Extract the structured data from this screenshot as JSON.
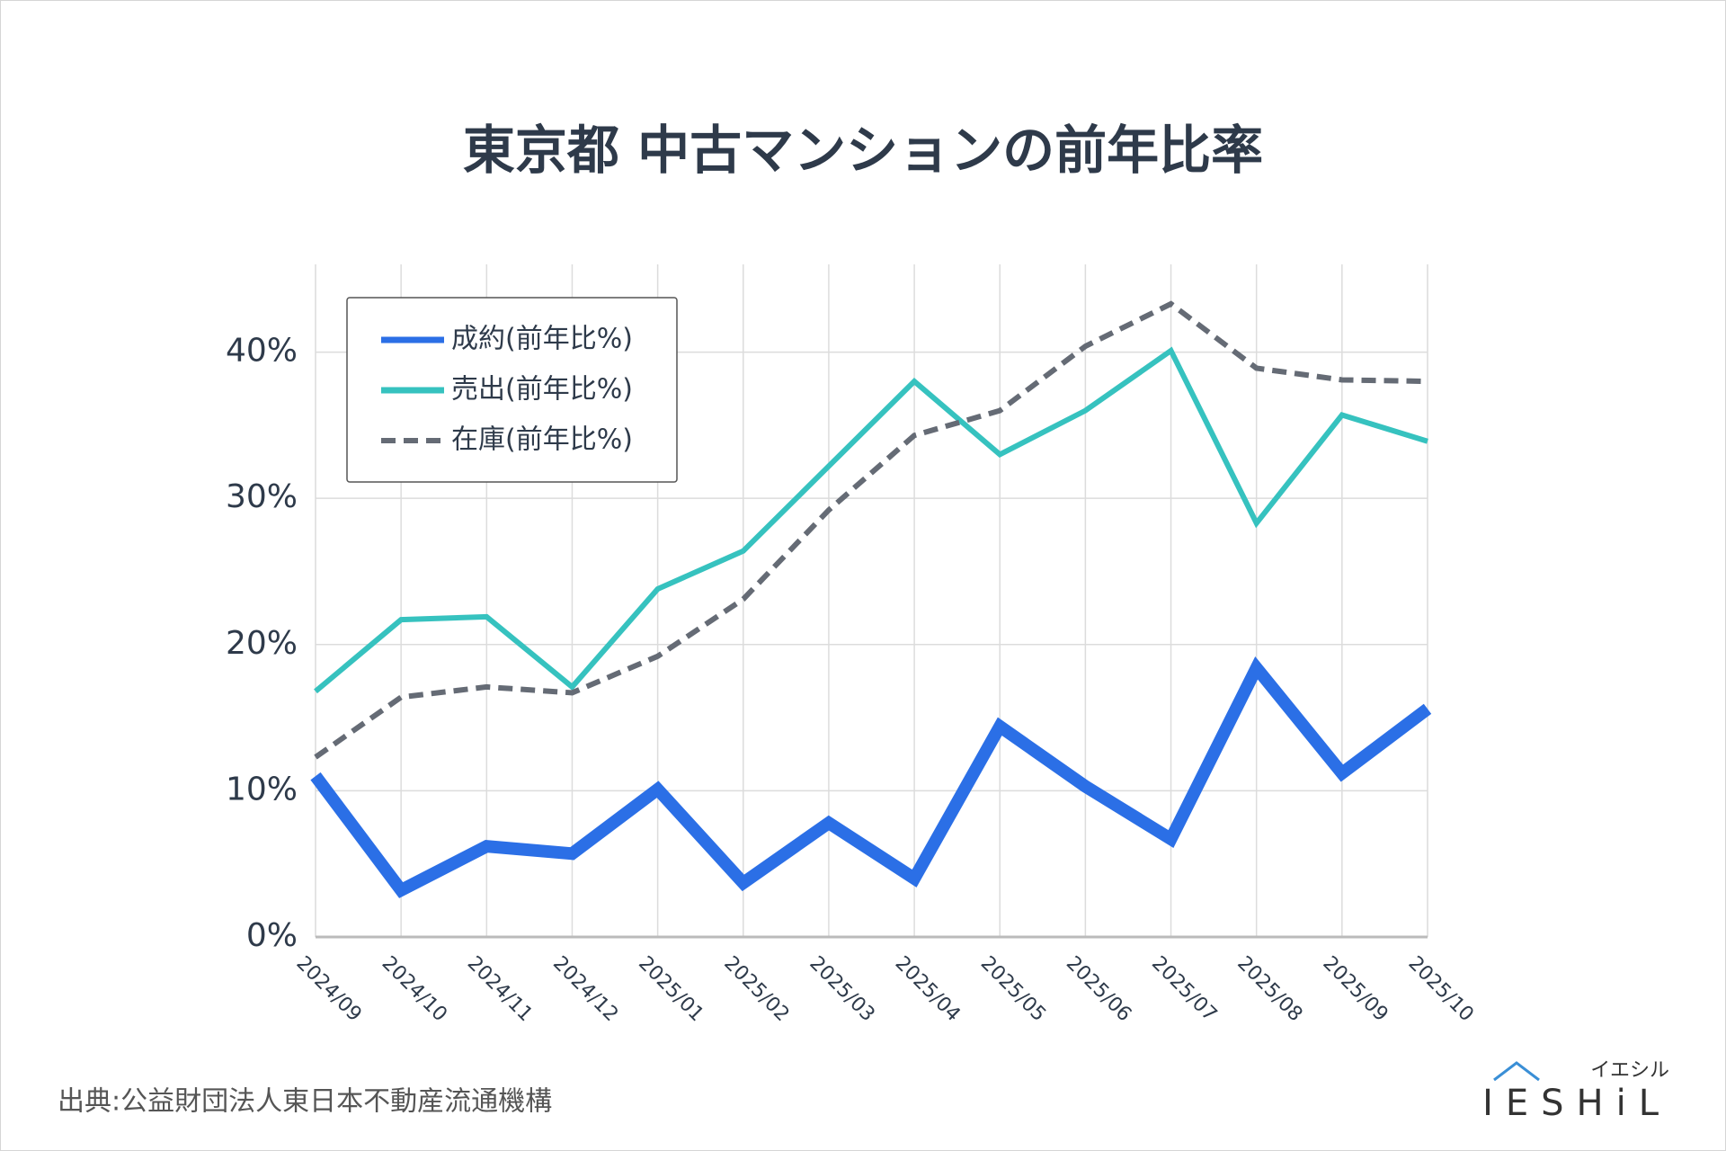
{
  "chart_data": {
    "type": "line",
    "title": "東京都 中古マンションの前年比率",
    "categories": [
      "2024/09",
      "2024/10",
      "2024/11",
      "2024/12",
      "2025/01",
      "2025/02",
      "2025/03",
      "2025/04",
      "2025/05",
      "2025/06",
      "2025/07",
      "2025/08",
      "2025/09",
      "2025/10"
    ],
    "series": [
      {
        "name": "成約(前年比%)",
        "color": "#2b6fe6",
        "dash": "solid",
        "width": 14,
        "values": [
          11.0,
          3.2,
          6.2,
          5.7,
          10.1,
          3.7,
          7.8,
          4.0,
          14.4,
          10.3,
          6.7,
          18.4,
          11.2,
          15.6
        ]
      },
      {
        "name": "売出(前年比%)",
        "color": "#36c2bf",
        "dash": "solid",
        "width": 6,
        "values": [
          16.8,
          21.7,
          21.9,
          17.1,
          23.8,
          26.4,
          32.2,
          38.0,
          33.0,
          36.0,
          40.1,
          28.3,
          35.7,
          33.9
        ]
      },
      {
        "name": "在庫(前年比%)",
        "color": "#656b75",
        "dash": "dashed",
        "width": 6,
        "values": [
          12.3,
          16.4,
          17.1,
          16.7,
          19.2,
          23.1,
          29.2,
          34.3,
          36.0,
          40.4,
          43.3,
          38.9,
          38.1,
          38.0
        ]
      }
    ],
    "ylim": [
      0,
      46
    ],
    "yticks": [
      {
        "value": 0,
        "label": "0%"
      },
      {
        "value": 10,
        "label": "10%"
      },
      {
        "value": 20,
        "label": "20%"
      },
      {
        "value": 30,
        "label": "30%"
      },
      {
        "value": 40,
        "label": "40%"
      }
    ],
    "grid": true,
    "legend": "upper-left"
  },
  "footer": {
    "source": "出典:公益財団法人東日本不動産流通機構",
    "logo": "IESHiL",
    "logo_kana": "イエシル"
  }
}
